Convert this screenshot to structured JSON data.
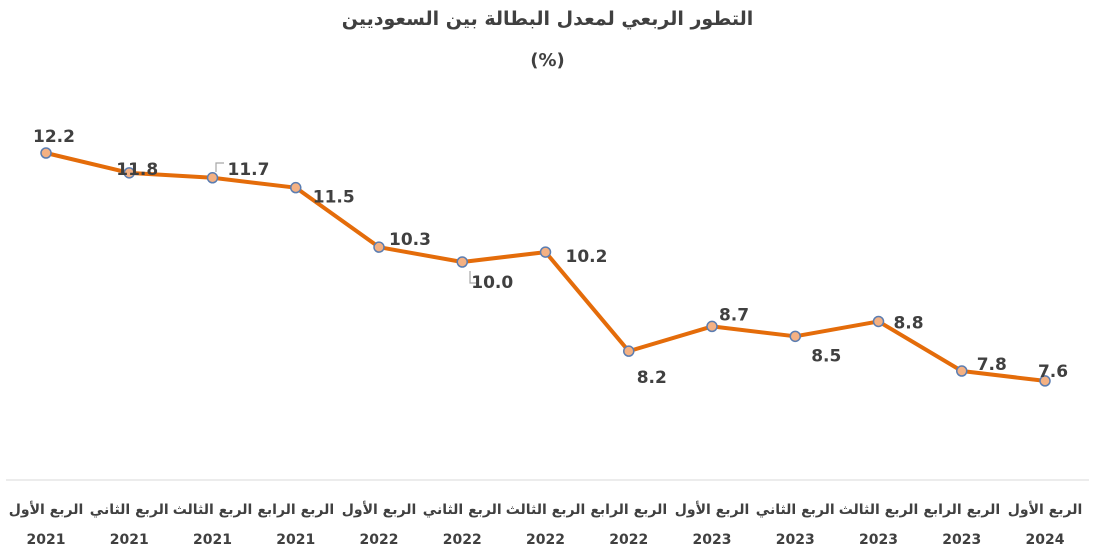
{
  "chart_data": {
    "type": "line",
    "title": "التطور الربعي لمعدل البطالة بين السعوديين",
    "subtitle": "(%)",
    "categories": [
      {
        "quarter": "الربع الأول",
        "year": "2021"
      },
      {
        "quarter": "الربع الثاني",
        "year": "2021"
      },
      {
        "quarter": "الربع الثالث",
        "year": "2021"
      },
      {
        "quarter": "الربع الرابع",
        "year": "2021"
      },
      {
        "quarter": "الربع الأول",
        "year": "2022"
      },
      {
        "quarter": "الربع الثاني",
        "year": "2022"
      },
      {
        "quarter": "الربع الثالث",
        "year": "2022"
      },
      {
        "quarter": "الربع الرابع",
        "year": "2022"
      },
      {
        "quarter": "الربع الأول",
        "year": "2023"
      },
      {
        "quarter": "الربع الثاني",
        "year": "2023"
      },
      {
        "quarter": "الربع الثالث",
        "year": "2023"
      },
      {
        "quarter": "الربع الرابع",
        "year": "2023"
      },
      {
        "quarter": "الربع الأول",
        "year": "2024"
      }
    ],
    "series": [
      {
        "values": [
          12.2,
          11.8,
          11.7,
          11.5,
          10.3,
          10.0,
          10.2,
          8.2,
          8.7,
          8.5,
          8.8,
          7.8,
          7.6
        ],
        "labels": [
          "12.2",
          "11.8",
          "11.7",
          "11.5",
          "10.3",
          "10.0",
          "10.2",
          "8.2",
          "8.7",
          "8.5",
          "8.8",
          "7.8",
          "7.6"
        ],
        "color": "#E46C0A",
        "marker_fill": "#F4B183",
        "marker_stroke": "#5B7DB1"
      }
    ],
    "ylim": [
      5.6,
      12.2
    ],
    "grid": false,
    "legend": "none",
    "axis_color": "#d9d9d9",
    "text_color": "#404040"
  }
}
